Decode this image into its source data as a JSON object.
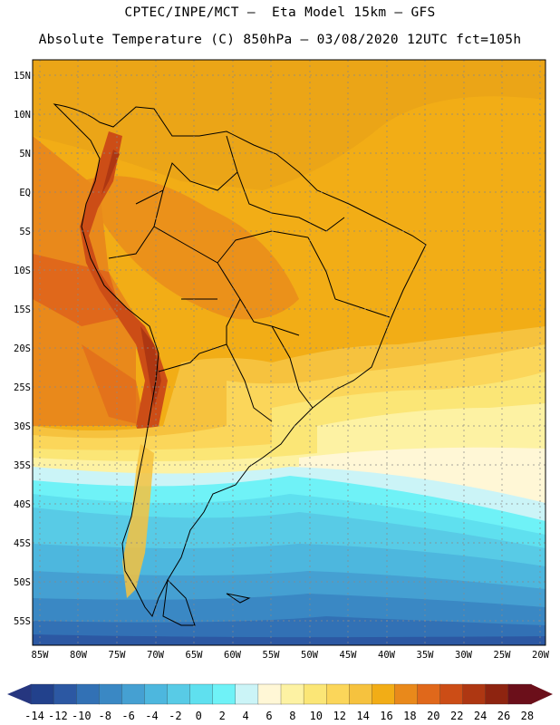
{
  "header": {
    "line1": "CPTEC/INPE/MCT –  Eta Model 15km – GFS",
    "line2": "Absolute Temperature (C) 850hPa – 03/08/2020 12UTC fct=105h"
  },
  "map": {
    "lat_labels": [
      "15N",
      "10N",
      "5N",
      "EQ",
      "5S",
      "10S",
      "15S",
      "20S",
      "25S",
      "30S",
      "35S",
      "40S",
      "45S",
      "50S",
      "55S"
    ],
    "lon_labels": [
      "85W",
      "80W",
      "75W",
      "70W",
      "65W",
      "60W",
      "55W",
      "50W",
      "45W",
      "40W",
      "35W",
      "30W",
      "25W",
      "20W"
    ],
    "lat_range": [
      -58,
      16
    ],
    "lon_range": [
      -86,
      -19
    ]
  },
  "colorbar": {
    "labels": [
      "-14",
      "-12",
      "-10",
      "-8",
      "-6",
      "-4",
      "-2",
      "0",
      "2",
      "4",
      "6",
      "8",
      "10",
      "12",
      "14",
      "16",
      "18",
      "20",
      "22",
      "24",
      "26",
      "28"
    ],
    "colors": {
      "low_arrow": "#26367f",
      "high_arrow": "#6b0f1a",
      "bins": [
        "#22418c",
        "#2c58a3",
        "#3271b5",
        "#3a88c4",
        "#45a0d2",
        "#4db7de",
        "#58cbe6",
        "#5fe0ef",
        "#6ff2f7",
        "#cbf4f7",
        "#fff7d6",
        "#fdf2a3",
        "#fbe676",
        "#fbd65a",
        "#f6c23e",
        "#f2ad16",
        "#e9891b",
        "#e0681b",
        "#cc4d16",
        "#ae3712",
        "#8e2410",
        "#6b0f1a"
      ]
    }
  }
}
